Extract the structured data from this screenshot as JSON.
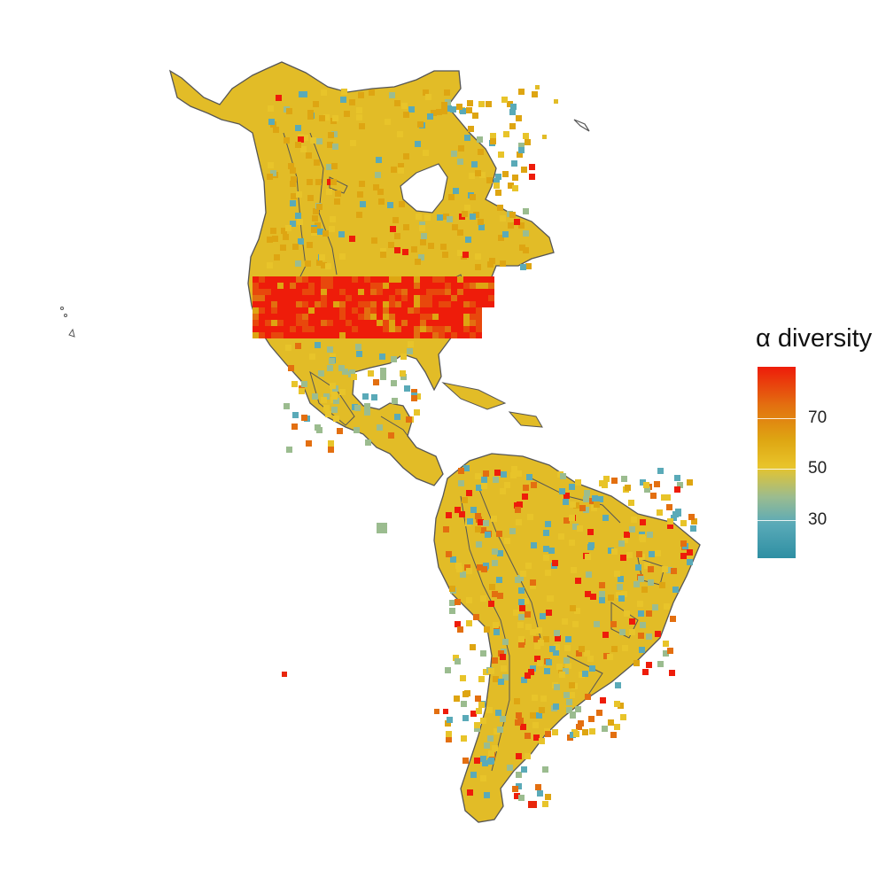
{
  "legend": {
    "title": "α diversity",
    "ticks": [
      {
        "label": "70",
        "value": 70
      },
      {
        "label": "50",
        "value": 50
      },
      {
        "label": "30",
        "value": 30
      }
    ],
    "range": [
      15,
      90
    ],
    "colors": [
      "#2e8fa3",
      "#5aaab8",
      "#9bbc8f",
      "#e8c42a",
      "#dea512",
      "#e36f10",
      "#ee1c0a"
    ]
  },
  "map": {
    "region": "Americas",
    "outline_color": "#555555",
    "land_fill": "#e2bc27"
  }
}
